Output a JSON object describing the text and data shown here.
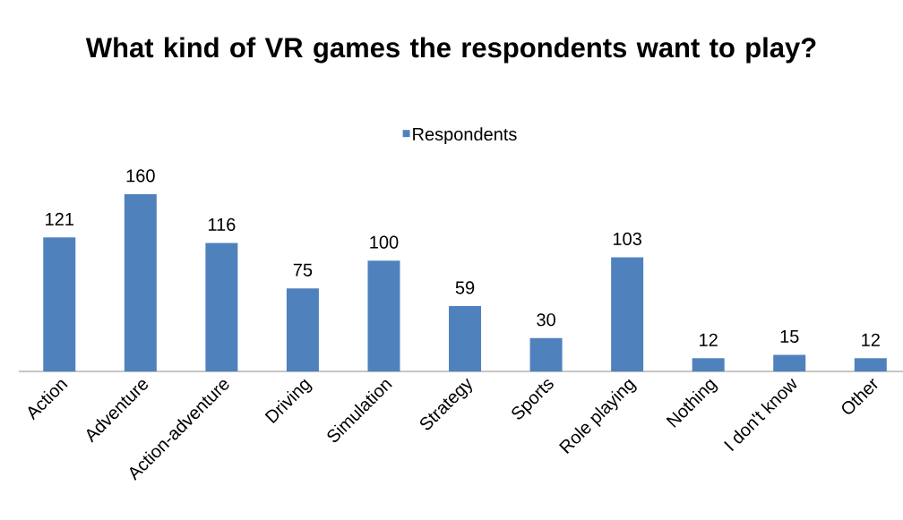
{
  "chart_data": {
    "type": "bar",
    "title": "What kind of VR games the respondents want to play?",
    "categories": [
      "Action",
      "Adventure",
      "Action-adventure",
      "Driving",
      "Simulation",
      "Strategy",
      "Sports",
      "Role playing",
      "Nothing",
      "I don't know",
      "Other"
    ],
    "series": [
      {
        "name": "Respondents",
        "color": "#4f81bd",
        "values": [
          121,
          160,
          116,
          75,
          100,
          59,
          30,
          103,
          12,
          15,
          12
        ]
      }
    ],
    "data_labels": true,
    "legend": "top"
  }
}
